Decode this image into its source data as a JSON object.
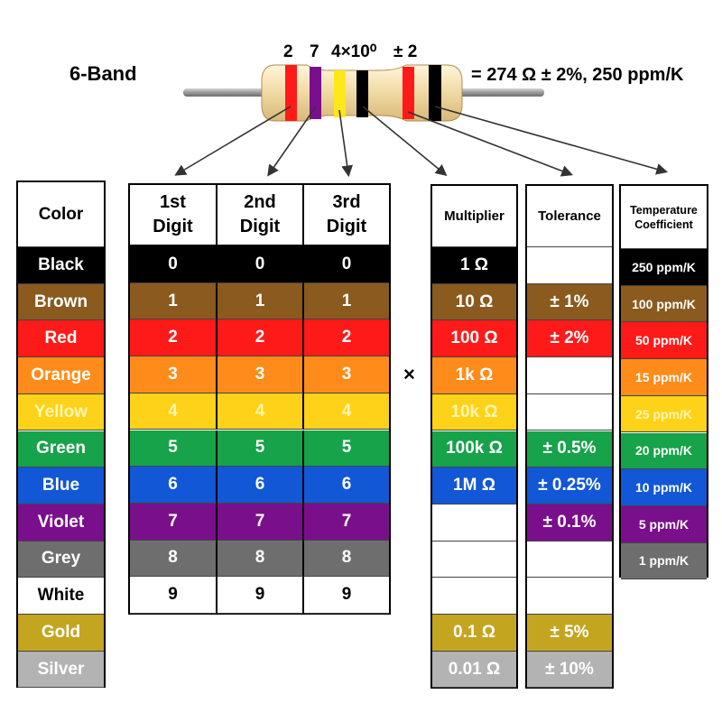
{
  "title": "6-Band",
  "band_labels": [
    "2",
    "7",
    "4×10⁰",
    "± 2"
  ],
  "result": "= 274 Ω ± 2%, 250 ppm/K",
  "multiply_sign": "×",
  "colors": {
    "Black": "#000000",
    "Brown": "#8a5a1e",
    "Red": "#ff1a1a",
    "Orange": "#ff8c1a",
    "Yellow": "#ffd21a",
    "Green": "#16a34a",
    "Blue": "#1257d6",
    "Violet": "#7a0f8c",
    "Grey": "#6e6e6e",
    "White": "#ffffff",
    "Gold": "#c3a520",
    "Silver": "#b3b3b3"
  },
  "color_column": {
    "header": "Color",
    "rows": [
      "Black",
      "Brown",
      "Red",
      "Orange",
      "Yellow",
      "Green",
      "Blue",
      "Violet",
      "Grey",
      "White",
      "Gold",
      "Silver"
    ]
  },
  "digit_columns": {
    "headers": [
      "1st Digit",
      "2nd Digit",
      "3rd Digit"
    ],
    "values": [
      "0",
      "1",
      "2",
      "3",
      "4",
      "5",
      "6",
      "7",
      "8",
      "9"
    ]
  },
  "multiplier": {
    "header": "Multiplier",
    "values": [
      "1 Ω",
      "10 Ω",
      "100 Ω",
      "1k Ω",
      "10k Ω",
      "100k Ω",
      "1M Ω",
      "",
      "",
      "",
      "0.1 Ω",
      "0.01 Ω"
    ]
  },
  "tolerance": {
    "header": "Tolerance",
    "values": [
      "",
      "± 1%",
      "± 2%",
      "",
      "",
      "± 0.5%",
      "± 0.25%",
      "± 0.1%",
      "",
      "",
      "± 5%",
      "± 10%"
    ]
  },
  "temp_coefficient": {
    "header": "Temperature Coefficient",
    "values": [
      "250 ppm/K",
      "100 ppm/K",
      "50 ppm/K",
      "15 ppm/K",
      "25 ppm/K",
      "20 ppm/K",
      "10 ppm/K",
      "5 ppm/K",
      "1 ppm/K"
    ]
  }
}
